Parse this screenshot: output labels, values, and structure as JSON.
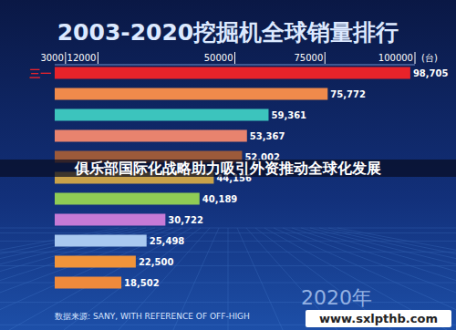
{
  "chart_data": {
    "type": "bar",
    "orientation": "horizontal",
    "title": "2003-2020挖掘机全球销量排行",
    "x_label": "(台)",
    "categories": [
      "三一",
      null,
      null,
      null,
      null,
      null,
      null,
      null,
      null,
      null,
      null
    ],
    "values": [
      98705,
      75772,
      59361,
      53367,
      52002,
      44156,
      40189,
      30722,
      25498,
      22500,
      18502
    ],
    "value_labels": [
      "98,705",
      "75,772",
      "59,361",
      "53,367",
      "52,002",
      "44,156",
      "40,189",
      "30,722",
      "25,498",
      "22,500",
      "18,502"
    ],
    "colors": [
      "#e8232a",
      "#f08a4b",
      "#3cc4bd",
      "#e8836e",
      "#9c5a3a",
      "#c9a24a",
      "#8fcc55",
      "#c67ad6",
      "#a9c9f0",
      "#f0943a",
      "#ef8a3c"
    ],
    "xlim": [
      0,
      100000
    ],
    "xticks": [
      3000,
      12000,
      50000,
      75000,
      100000
    ],
    "data_labels": true,
    "grid": false,
    "annotations": [
      "俱乐部国际化战略助力吸引外资推动全球化发展",
      "数据来源: SANY, WITH REFERENCE OF OFF-HIGH",
      "2020年",
      "www.sxlpthb.com"
    ]
  }
}
